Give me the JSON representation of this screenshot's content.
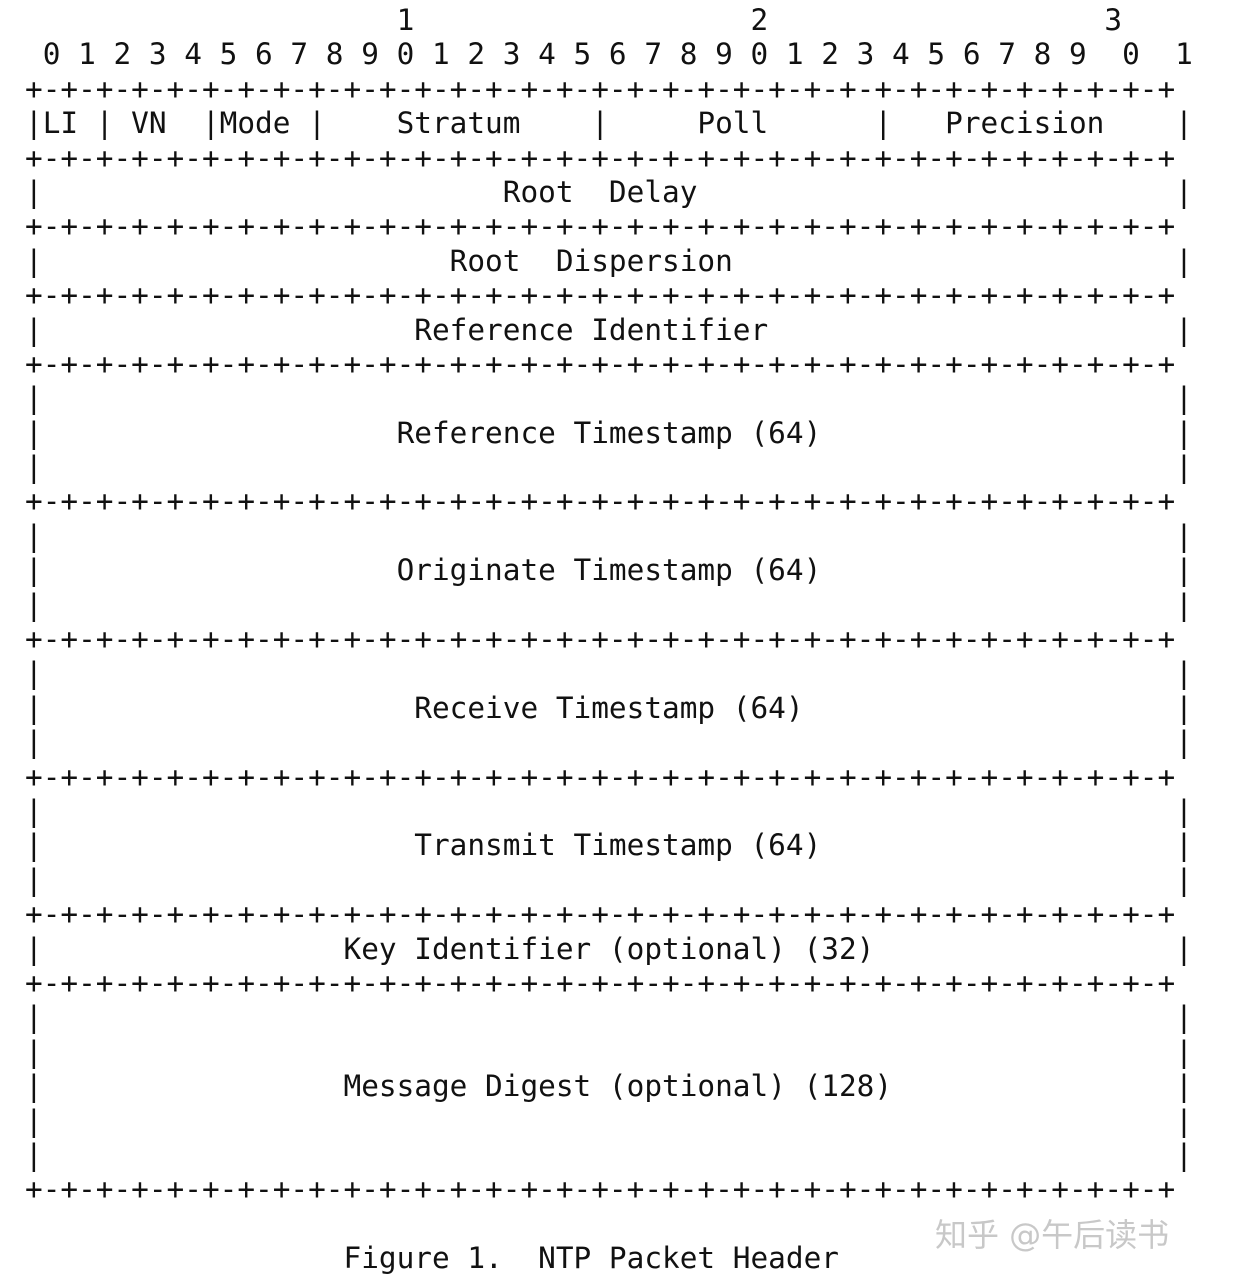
{
  "diagram": {
    "lines": [
      "                     1                   2                   3",
      " 0 1 2 3 4 5 6 7 8 9 0 1 2 3 4 5 6 7 8 9 0 1 2 3 4 5 6 7 8 9  0  1",
      "+-+-+-+-+-+-+-+-+-+-+-+-+-+-+-+-+-+-+-+-+-+-+-+-+-+-+-+-+-+-+-+-+",
      "|LI | VN  |Mode |    Stratum    |     Poll      |   Precision    |",
      "+-+-+-+-+-+-+-+-+-+-+-+-+-+-+-+-+-+-+-+-+-+-+-+-+-+-+-+-+-+-+-+-+",
      "|                          Root  Delay                           |",
      "+-+-+-+-+-+-+-+-+-+-+-+-+-+-+-+-+-+-+-+-+-+-+-+-+-+-+-+-+-+-+-+-+",
      "|                       Root  Dispersion                         |",
      "+-+-+-+-+-+-+-+-+-+-+-+-+-+-+-+-+-+-+-+-+-+-+-+-+-+-+-+-+-+-+-+-+",
      "|                     Reference Identifier                       |",
      "+-+-+-+-+-+-+-+-+-+-+-+-+-+-+-+-+-+-+-+-+-+-+-+-+-+-+-+-+-+-+-+-+",
      "|                                                                |",
      "|                    Reference Timestamp (64)                    |",
      "|                                                                |",
      "+-+-+-+-+-+-+-+-+-+-+-+-+-+-+-+-+-+-+-+-+-+-+-+-+-+-+-+-+-+-+-+-+",
      "|                                                                |",
      "|                    Originate Timestamp (64)                    |",
      "|                                                                |",
      "+-+-+-+-+-+-+-+-+-+-+-+-+-+-+-+-+-+-+-+-+-+-+-+-+-+-+-+-+-+-+-+-+",
      "|                                                                |",
      "|                     Receive Timestamp (64)                     |",
      "|                                                                |",
      "+-+-+-+-+-+-+-+-+-+-+-+-+-+-+-+-+-+-+-+-+-+-+-+-+-+-+-+-+-+-+-+-+",
      "|                                                                |",
      "|                     Transmit Timestamp (64)                    |",
      "|                                                                |",
      "+-+-+-+-+-+-+-+-+-+-+-+-+-+-+-+-+-+-+-+-+-+-+-+-+-+-+-+-+-+-+-+-+",
      "|                 Key Identifier (optional) (32)                 |",
      "+-+-+-+-+-+-+-+-+-+-+-+-+-+-+-+-+-+-+-+-+-+-+-+-+-+-+-+-+-+-+-+-+",
      "|                                                                |",
      "|                                                                |",
      "|                 Message Digest (optional) (128)                |",
      "|                                                                |",
      "|                                                                |",
      "+-+-+-+-+-+-+-+-+-+-+-+-+-+-+-+-+-+-+-+-+-+-+-+-+-+-+-+-+-+-+-+-+",
      "",
      "                  Figure 1.  NTP Packet Header"
    ]
  },
  "watermark": "知乎 @午后读书"
}
